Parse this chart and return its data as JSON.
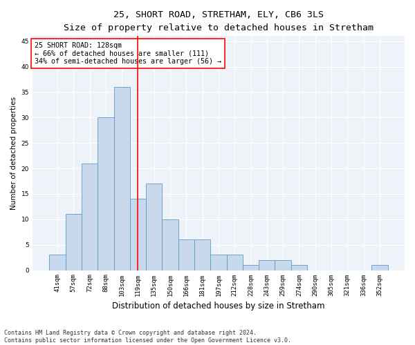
{
  "title": "25, SHORT ROAD, STRETHAM, ELY, CB6 3LS",
  "subtitle": "Size of property relative to detached houses in Stretham",
  "xlabel": "Distribution of detached houses by size in Stretham",
  "ylabel": "Number of detached properties",
  "bar_color": "#c8d9ee",
  "bar_edgecolor": "#5a9ac5",
  "categories": [
    "41sqm",
    "57sqm",
    "72sqm",
    "88sqm",
    "103sqm",
    "119sqm",
    "135sqm",
    "150sqm",
    "166sqm",
    "181sqm",
    "197sqm",
    "212sqm",
    "228sqm",
    "243sqm",
    "259sqm",
    "274sqm",
    "290sqm",
    "305sqm",
    "321sqm",
    "336sqm",
    "352sqm"
  ],
  "values": [
    3,
    11,
    21,
    30,
    36,
    14,
    17,
    10,
    6,
    6,
    3,
    3,
    1,
    2,
    2,
    1,
    0,
    0,
    0,
    0,
    1
  ],
  "ylim": [
    0,
    46
  ],
  "yticks": [
    0,
    5,
    10,
    15,
    20,
    25,
    30,
    35,
    40,
    45
  ],
  "property_line_x": 5.0,
  "annotation_text": "25 SHORT ROAD: 128sqm\n← 66% of detached houses are smaller (111)\n34% of semi-detached houses are larger (56) →",
  "annotation_box_color": "white",
  "annotation_box_edgecolor": "red",
  "property_line_color": "red",
  "footer_line1": "Contains HM Land Registry data © Crown copyright and database right 2024.",
  "footer_line2": "Contains public sector information licensed under the Open Government Licence v3.0.",
  "background_color": "#eef2f9",
  "grid_color": "white",
  "title_fontsize": 9.5,
  "subtitle_fontsize": 8.5,
  "xlabel_fontsize": 8.5,
  "ylabel_fontsize": 7.5,
  "tick_fontsize": 6.5,
  "annotation_fontsize": 7.2,
  "footer_fontsize": 6.0
}
